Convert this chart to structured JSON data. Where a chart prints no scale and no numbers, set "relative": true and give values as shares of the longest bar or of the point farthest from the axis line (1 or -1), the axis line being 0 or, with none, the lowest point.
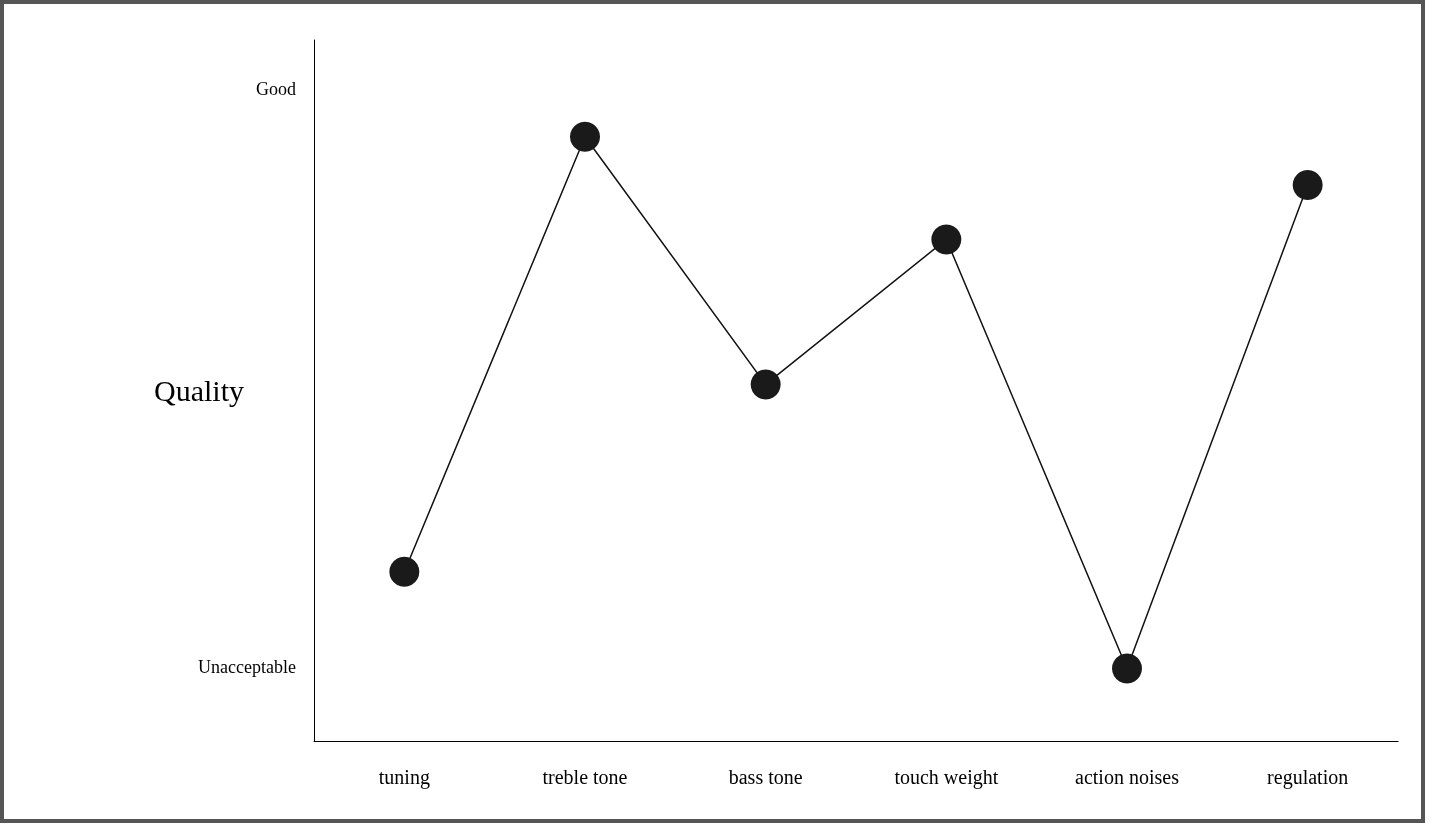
{
  "chart_data": {
    "type": "line",
    "ylabel": "Quality",
    "relative": true,
    "categories": [
      "tuning",
      "treble tone",
      "bass tone",
      "touch weight",
      "action noises",
      "regulation"
    ],
    "series": [
      {
        "color": "#1a1a1a",
        "values": [
          0.28,
          1,
          0.59,
          0.83,
          0.12,
          0.92
        ]
      }
    ],
    "annotations": [
      "Good",
      "Unacceptable"
    ],
    "grid": false,
    "marker": "circle",
    "line_style": "solid"
  }
}
